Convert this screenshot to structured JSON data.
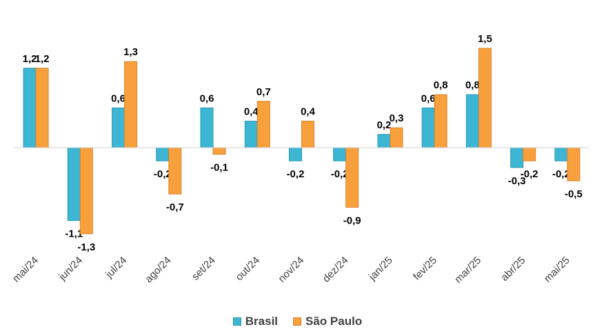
{
  "chart_data": {
    "type": "bar",
    "categories": [
      "mai/24",
      "jun/24",
      "jul/24",
      "ago/24",
      "set/24",
      "out/24",
      "nov/24",
      "dez/24",
      "jan/25",
      "fev/25",
      "mar/25",
      "abr/25",
      "mai/25"
    ],
    "series": [
      {
        "name": "Brasil",
        "color": "#3DB6D3",
        "stroke": "#2a97b3",
        "values": [
          1.2,
          -1.1,
          0.6,
          -0.2,
          0.6,
          0.4,
          -0.2,
          -0.2,
          0.2,
          0.6,
          0.8,
          -0.3,
          -0.2
        ],
        "labels": [
          "1,2",
          "-1,1",
          "0,6",
          "-0,2",
          "0,6",
          "0,4",
          "-0,2",
          "-0,2",
          "0,2",
          "0,6",
          "0,8",
          "-0,3",
          "-0,2"
        ]
      },
      {
        "name": "São Paulo",
        "color": "#F8A03C",
        "stroke": "#d9822a",
        "values": [
          1.2,
          -1.3,
          1.3,
          -0.7,
          -0.1,
          0.7,
          0.4,
          -0.9,
          0.3,
          0.8,
          1.5,
          -0.2,
          -0.5
        ],
        "labels": [
          "1,2",
          "-1,3",
          "1,3",
          "-0,7",
          "-0,1",
          "0,7",
          "0,4",
          "-0,9",
          "0,3",
          "0,8",
          "1,5",
          "-0,2",
          "-0,5"
        ]
      }
    ],
    "title": "",
    "xlabel": "",
    "ylabel": "",
    "legend_position": "bottom",
    "grid": false
  }
}
